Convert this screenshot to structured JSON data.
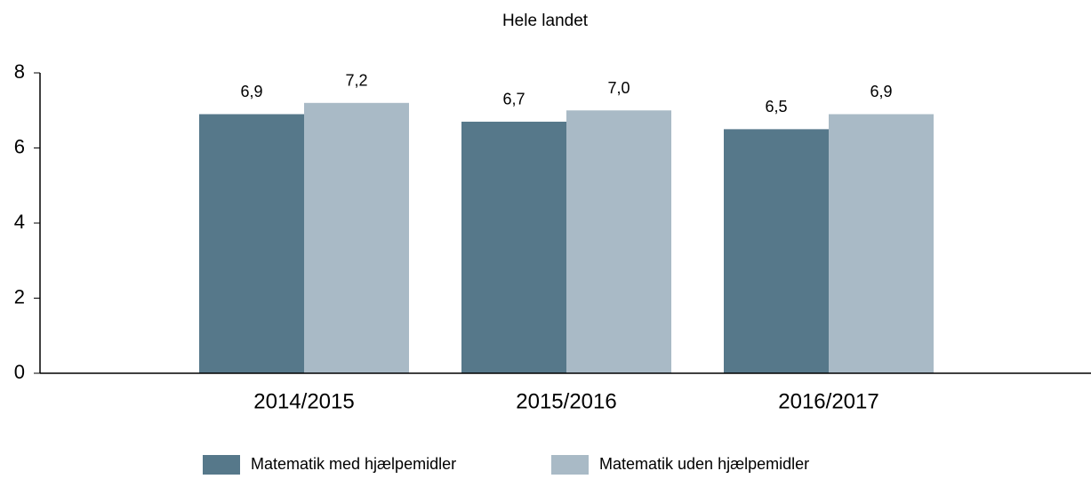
{
  "chart_data": {
    "type": "bar",
    "title": "Hele landet",
    "categories": [
      "2014/2015",
      "2015/2016",
      "2016/2017"
    ],
    "series": [
      {
        "name": "Matematik med hjælpemidler",
        "color": "#56788a",
        "values": [
          6.9,
          6.7,
          6.5
        ],
        "value_labels": [
          "6,9",
          "6,7",
          "6,5"
        ]
      },
      {
        "name": "Matematik uden hjælpemidler",
        "color": "#a9bac6",
        "values": [
          7.2,
          7.0,
          6.9
        ],
        "value_labels": [
          "7,2",
          "7,0",
          "6,9"
        ]
      }
    ],
    "ylim": [
      0,
      8
    ],
    "yticks": [
      0,
      2,
      4,
      6,
      8
    ],
    "grid": false,
    "legend": "bottom"
  }
}
